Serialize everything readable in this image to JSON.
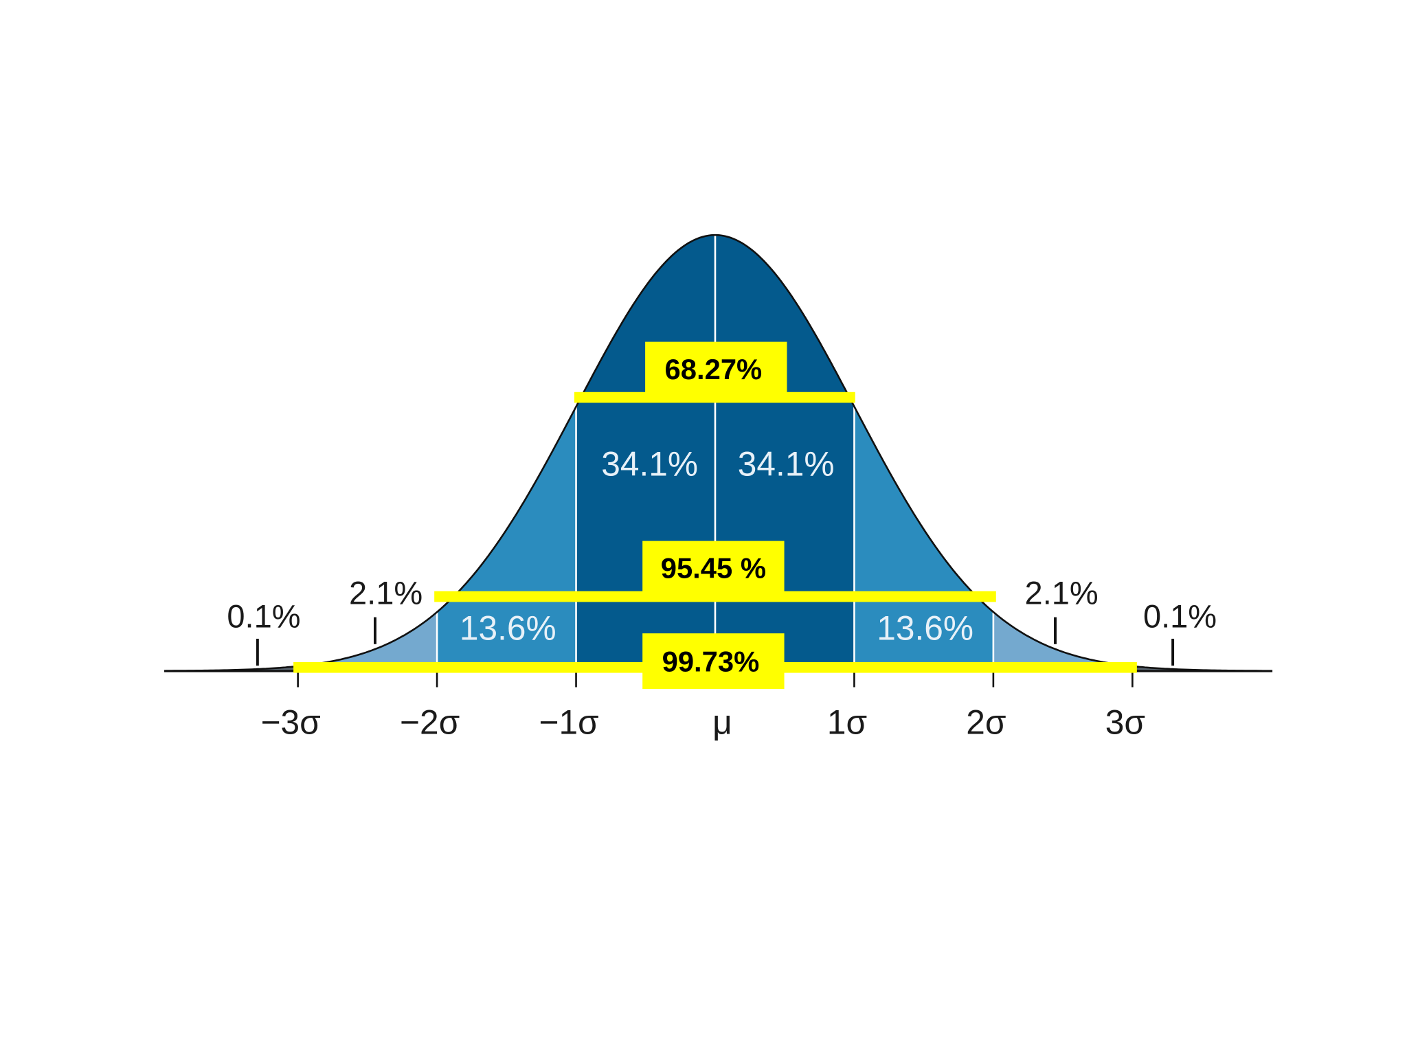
{
  "region_labels": [
    "0.1%",
    "2.1%",
    "13.6%",
    "34.1%",
    "34.1%",
    "13.6%",
    "2.1%",
    "0.1%"
  ],
  "axis_labels": [
    "−3σ",
    "−2σ",
    "−1σ",
    "μ",
    "1σ",
    "2σ",
    "3σ"
  ],
  "interval_labels": [
    "68.27%",
    "95.45 %",
    "99.73%"
  ]
}
